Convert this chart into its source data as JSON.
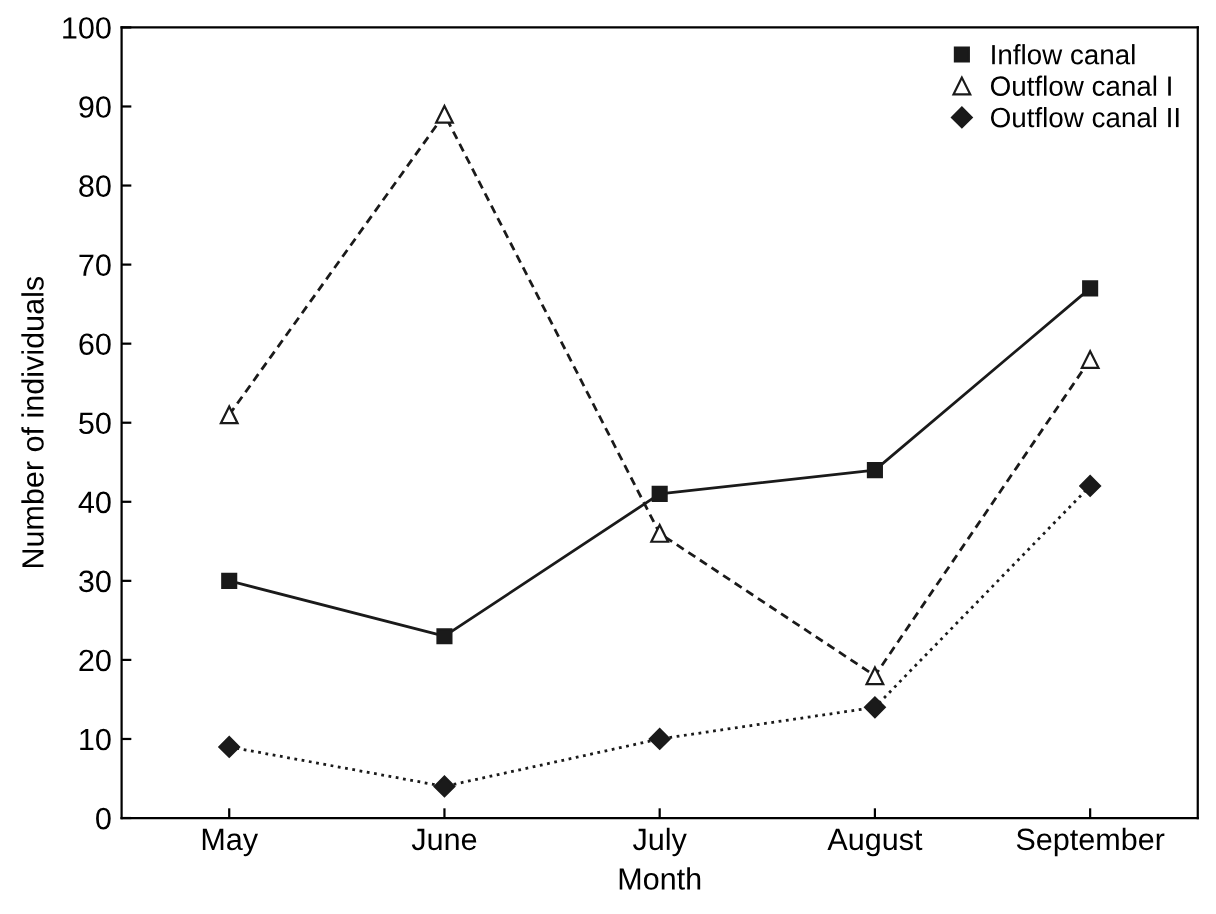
{
  "chart_data": {
    "type": "line",
    "xlabel": "Month",
    "ylabel": "Number of individuals",
    "categories": [
      "May",
      "June",
      "July",
      "August",
      "September"
    ],
    "series": [
      {
        "name": "Inflow canal",
        "color": "#1a1a1a",
        "values": [
          30,
          23,
          41,
          44,
          67
        ],
        "marker": "square",
        "line_style": "solid"
      },
      {
        "name": "Outflow canal I",
        "color": "#1a1a1a",
        "values": [
          51,
          89,
          36,
          18,
          58
        ],
        "marker": "triangle",
        "line_style": "dashed"
      },
      {
        "name": "Outflow canal II",
        "color": "#1a1a1a",
        "values": [
          9,
          4,
          10,
          14,
          42
        ],
        "marker": "diamond",
        "line_style": "dotted"
      }
    ],
    "ylim": [
      0,
      100
    ],
    "yticks": [
      0,
      10,
      20,
      30,
      40,
      50,
      60,
      70,
      80,
      90,
      100
    ],
    "grid": false,
    "legend": "top right"
  }
}
